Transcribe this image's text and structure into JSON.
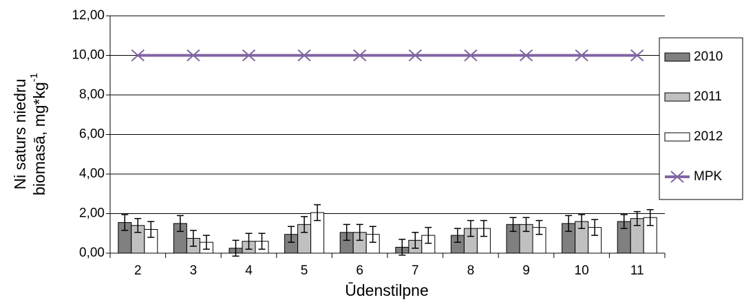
{
  "chart_data": {
    "type": "bar",
    "ylabel_lines": [
      "Ni saturs niedru",
      "biomasā, mg*kg"
    ],
    "ylabel_sup": "-1",
    "xlabel": "Ūdenstilpne",
    "categories": [
      "2",
      "3",
      "4",
      "5",
      "6",
      "7",
      "8",
      "9",
      "10",
      "11"
    ],
    "series": [
      {
        "name": "2010",
        "color": "#808080",
        "values": [
          1.55,
          1.5,
          0.25,
          0.95,
          1.05,
          0.3,
          0.9,
          1.45,
          1.5,
          1.6
        ],
        "errors": [
          0.4,
          0.4,
          0.4,
          0.4,
          0.4,
          0.4,
          0.35,
          0.35,
          0.4,
          0.35
        ]
      },
      {
        "name": "2011",
        "color": "#c0c0c0",
        "values": [
          1.4,
          0.75,
          0.6,
          1.45,
          1.05,
          0.65,
          1.25,
          1.45,
          1.6,
          1.75
        ],
        "errors": [
          0.35,
          0.4,
          0.4,
          0.4,
          0.4,
          0.4,
          0.4,
          0.35,
          0.35,
          0.35
        ]
      },
      {
        "name": "2012",
        "color": "#ffffff",
        "values": [
          1.2,
          0.55,
          0.6,
          2.05,
          0.95,
          0.9,
          1.25,
          1.3,
          1.3,
          1.8
        ],
        "errors": [
          0.4,
          0.35,
          0.4,
          0.4,
          0.4,
          0.4,
          0.4,
          0.35,
          0.4,
          0.4
        ]
      },
      {
        "name": "MPK",
        "type": "line",
        "color": "#8064a2",
        "values": [
          10,
          10,
          10,
          10,
          10,
          10,
          10,
          10,
          10,
          10
        ]
      }
    ],
    "ylim": [
      0,
      12
    ],
    "yticks": [
      {
        "value": 0,
        "label": "0,00"
      },
      {
        "value": 2,
        "label": "2,00"
      },
      {
        "value": 4,
        "label": "4,00"
      },
      {
        "value": 6,
        "label": "6,00"
      },
      {
        "value": 8,
        "label": "8,00"
      },
      {
        "value": 10,
        "label": "10,00"
      },
      {
        "value": 12,
        "label": "12,00"
      }
    ],
    "grid": true,
    "legend": "right"
  }
}
